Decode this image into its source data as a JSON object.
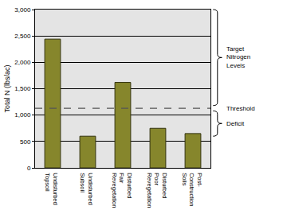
{
  "chart_data": {
    "type": "bar",
    "categories": [
      "Undisturbed\nTopsoil",
      "Undisturbed\nSubsoil",
      "Disturbed\nFair\nRevegetation",
      "Disturbed\nPoor\nRevegetation",
      "Post-\nConstruction\nSoils"
    ],
    "values": [
      2440,
      600,
      1620,
      750,
      650
    ],
    "color": "#86862c",
    "ylabel": "Total N (lbs/ac)",
    "ylim": [
      0,
      3000
    ],
    "yticks": [
      0,
      500,
      {
        "value": 1000,
        "label": "1,000"
      },
      {
        "value": 1500,
        "label": "1,500"
      },
      {
        "value": 2000,
        "label": "2,000"
      },
      {
        "value": 2500,
        "label": "2,500"
      },
      {
        "value": 3000,
        "label": "3,000"
      }
    ],
    "grid": true,
    "reference_line": {
      "value": 1130,
      "label": "Threshold",
      "line_style": "dashed"
    },
    "annotations": [
      {
        "text": "Target\nNitrogen\nLevels",
        "y_from": 1180,
        "y_to": 3000
      },
      {
        "text": "Deficit",
        "y_from": 600,
        "y_to": 1080
      }
    ]
  }
}
